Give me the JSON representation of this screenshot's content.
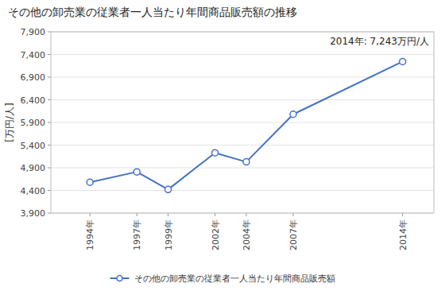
{
  "chart_data": {
    "type": "line",
    "title": "その他の卸売業の従業者一人当たり年間商品販売額の推移",
    "y_label": "[万円/人]",
    "annotation": "2014年: 7,243万円/人",
    "x": [
      1994,
      1997,
      1999,
      2002,
      2004,
      2007,
      2014
    ],
    "xlim": [
      1991.5,
      2016
    ],
    "xticks": [
      {
        "value": 1994,
        "label": "1994年"
      },
      {
        "value": 1997,
        "label": "1997年"
      },
      {
        "value": 1999,
        "label": "1999年"
      },
      {
        "value": 2002,
        "label": "2002年"
      },
      {
        "value": 2004,
        "label": "2004年"
      },
      {
        "value": 2007,
        "label": "2007年"
      },
      {
        "value": 2014,
        "label": "2014年"
      }
    ],
    "ylim": [
      3900,
      7900
    ],
    "yticks": [
      {
        "value": 3900,
        "label": "3,900"
      },
      {
        "value": 4400,
        "label": "4,400"
      },
      {
        "value": 4900,
        "label": "4,900"
      },
      {
        "value": 5400,
        "label": "5,400"
      },
      {
        "value": 5900,
        "label": "5,900"
      },
      {
        "value": 6400,
        "label": "6,400"
      },
      {
        "value": 6900,
        "label": "6,900"
      },
      {
        "value": 7400,
        "label": "7,400"
      },
      {
        "value": 7900,
        "label": "7,900"
      }
    ],
    "series": [
      {
        "name": "その他の卸売業の従業者一人当たり年間商品販売額",
        "color": "#4472C4",
        "marker": "circle",
        "values": [
          4580,
          4810,
          4420,
          5230,
          5030,
          6080,
          7243
        ]
      }
    ],
    "grid": true,
    "legend": "bottom"
  }
}
